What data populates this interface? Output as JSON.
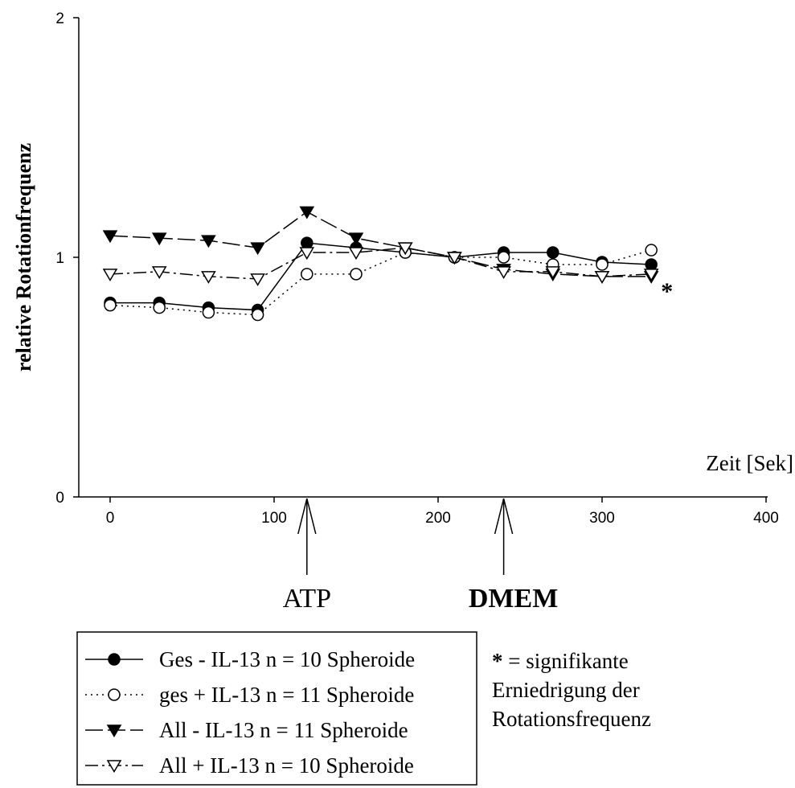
{
  "chart_data": {
    "type": "line",
    "title": "",
    "xlabel": "Zeit [Sek]",
    "ylabel": "relative Rotationfrequenz",
    "xlim": [
      -15,
      400
    ],
    "ylim": [
      0,
      2
    ],
    "x_ticks": [
      {
        "value": 0,
        "label": "0"
      },
      {
        "value": 100,
        "label": "100"
      },
      {
        "value": 200,
        "label": "200"
      },
      {
        "value": 300,
        "label": "300"
      },
      {
        "value": 400,
        "label": "400"
      }
    ],
    "y_ticks": [
      {
        "value": 0,
        "label": "0"
      },
      {
        "value": 1,
        "label": "1"
      },
      {
        "value": 2,
        "label": "2"
      }
    ],
    "grid": false,
    "legend_position": "bottom-left",
    "series": [
      {
        "name": "Ges - IL-13 n = 10 Spheroide",
        "marker": "filled-circle",
        "line": "solid",
        "x": [
          0,
          30,
          60,
          90,
          120,
          150,
          180,
          210,
          240,
          270,
          300,
          330
        ],
        "y": [
          0.81,
          0.81,
          0.79,
          0.78,
          1.06,
          1.04,
          1.02,
          1.0,
          1.02,
          1.02,
          0.98,
          0.97
        ]
      },
      {
        "name": "ges + IL-13 n = 11 Spheroide",
        "marker": "open-circle",
        "line": "dotted",
        "x": [
          0,
          30,
          60,
          90,
          120,
          150,
          180,
          210,
          240,
          270,
          300,
          330
        ],
        "y": [
          0.8,
          0.79,
          0.77,
          0.76,
          0.93,
          0.93,
          1.02,
          1.0,
          1.0,
          0.97,
          0.97,
          1.03
        ]
      },
      {
        "name": "All - IL-13 n = 11 Spheroide",
        "marker": "filled-triangle-down",
        "line": "longdash",
        "x": [
          0,
          30,
          60,
          90,
          120,
          150,
          180,
          210,
          240,
          270,
          300,
          330
        ],
        "y": [
          1.09,
          1.08,
          1.07,
          1.04,
          1.19,
          1.08,
          1.04,
          1.0,
          0.95,
          0.93,
          0.92,
          0.92
        ]
      },
      {
        "name": "All + IL-13 n = 10 Spheroide",
        "marker": "open-triangle-down",
        "line": "dashdot",
        "x": [
          0,
          30,
          60,
          90,
          120,
          150,
          180,
          210,
          240,
          270,
          300,
          330
        ],
        "y": [
          0.93,
          0.94,
          0.92,
          0.91,
          1.02,
          1.02,
          1.04,
          1.0,
          0.94,
          0.94,
          0.92,
          0.93
        ]
      }
    ],
    "annotations": [
      {
        "label": "ATP",
        "x": 120,
        "style": "normal"
      },
      {
        "label": "DMEM",
        "x": 240,
        "style": "bold"
      }
    ],
    "significance": {
      "marker": "*",
      "x": 330,
      "y": 0.92
    },
    "note": {
      "symbol": "*",
      "lines": [
        " = signifikante",
        "Erniedrigung der",
        "Rotationsfrequenz"
      ]
    }
  }
}
